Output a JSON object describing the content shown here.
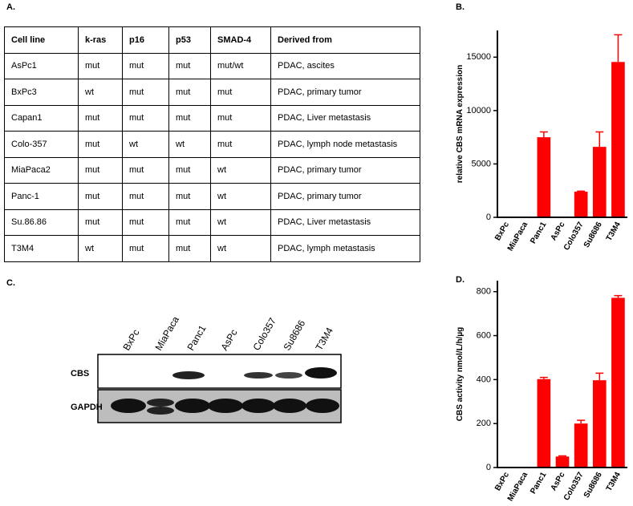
{
  "panel_labels": [
    "A.",
    "B.",
    "C.",
    "D."
  ],
  "table": {
    "header": [
      "Cell line",
      "k-ras",
      "p16",
      "p53",
      "SMAD-4",
      "Derived from"
    ],
    "rows": [
      [
        "AsPc1",
        "mut",
        "mut",
        "mut",
        "mut/wt",
        "PDAC, ascites"
      ],
      [
        "BxPc3",
        "wt",
        "mut",
        "mut",
        "mut",
        "PDAC, primary tumor"
      ],
      [
        "Capan1",
        "mut",
        "mut",
        "mut",
        "mut",
        "PDAC, Liver metastasis"
      ],
      [
        "Colo-357",
        "mut",
        "wt",
        "wt",
        "mut",
        "PDAC, lymph node metastasis"
      ],
      [
        "MiaPaca2",
        "mut",
        "mut",
        "mut",
        "wt",
        "PDAC, primary tumor"
      ],
      [
        "Panc-1",
        "mut",
        "mut",
        "mut",
        "wt",
        "PDAC, primary tumor"
      ],
      [
        "Su.86.86",
        "mut",
        "mut",
        "mut",
        "wt",
        "PDAC, Liver metastasis"
      ],
      [
        "T3M4",
        "wt",
        "mut",
        "mut",
        "wt",
        "PDAC, lymph metastasis"
      ]
    ]
  },
  "blot": {
    "lanes": [
      "BxPc",
      "MiaPaca",
      "Panc1",
      "AsPc",
      "Colo357",
      "Su8686",
      "T3M4"
    ],
    "rows": [
      "CBS",
      "GAPDH"
    ]
  },
  "chart_data": [
    {
      "type": "bar",
      "y_label": "relative CBS mRNA expression",
      "color": "#ff0000",
      "categories": [
        "BxPc",
        "MiaPaca",
        "Panc1",
        "AsPc",
        "Colo357",
        "Su8686",
        "T3M4"
      ],
      "values": [
        0,
        0,
        7500,
        0,
        2400,
        6600,
        14550
      ],
      "errors": [
        0,
        0,
        500,
        0,
        50,
        1400,
        2550
      ],
      "ylim": [
        0,
        17500
      ],
      "yticks": [
        0,
        5000,
        10000,
        15000
      ]
    },
    {
      "type": "bar",
      "y_label": "CBS activity nmol/L/h/µg",
      "color": "#ff0000",
      "categories": [
        "BxPc",
        "MiaPaca",
        "Panc1",
        "AsPc",
        "Colo357",
        "Su8686",
        "T3M4"
      ],
      "values": [
        0,
        0,
        402,
        50,
        200,
        397,
        772
      ],
      "errors": [
        0,
        0,
        8,
        3,
        15,
        32,
        10
      ],
      "ylim": [
        0,
        850
      ],
      "yticks": [
        0,
        200,
        400,
        600,
        800
      ]
    }
  ]
}
